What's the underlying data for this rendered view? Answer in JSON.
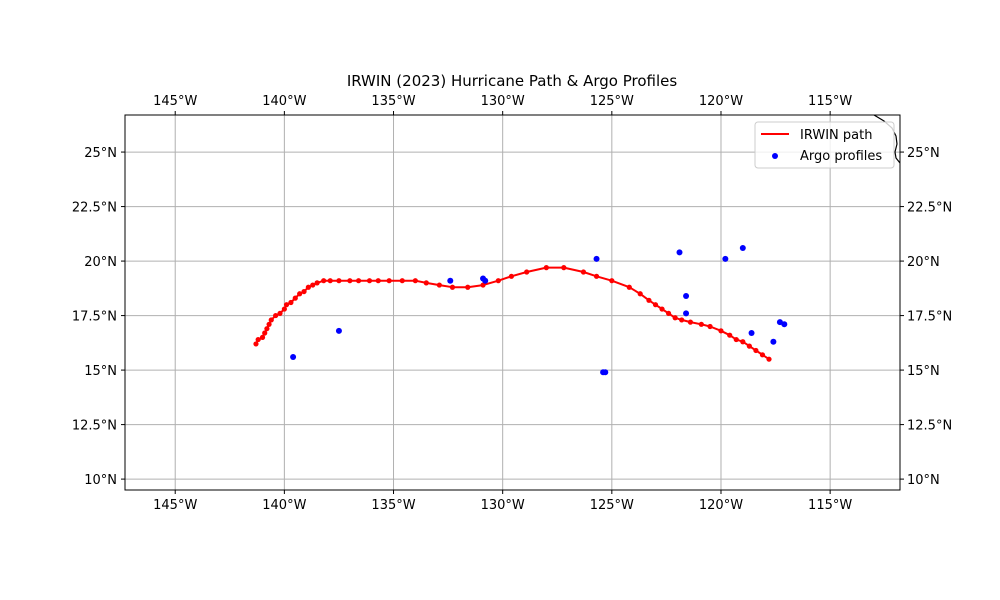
{
  "chart_data": {
    "type": "map",
    "title": "IRWIN (2023) Hurricane Path & Argo Profiles",
    "projection": "PlateCarree",
    "xlim": [
      -147.3,
      -111.8
    ],
    "ylim": [
      9.5,
      26.7
    ],
    "x_ticks": [
      -145,
      -140,
      -135,
      -130,
      -125,
      -120,
      -115
    ],
    "x_tick_labels": [
      "145°W",
      "140°W",
      "135°W",
      "130°W",
      "125°W",
      "120°W",
      "115°W"
    ],
    "y_ticks": [
      10,
      12.5,
      15,
      17.5,
      20,
      22.5,
      25
    ],
    "y_tick_labels": [
      "10°N",
      "12.5°N",
      "15°N",
      "17.5°N",
      "20°N",
      "22.5°N",
      "25°N"
    ],
    "grid": true,
    "legend": {
      "position": "top-right",
      "entries": [
        {
          "label": "IRWIN path",
          "marker": "line"
        },
        {
          "label": "Argo profiles",
          "marker": "dot"
        }
      ]
    },
    "colors": {
      "path": "#ff0000",
      "argo": "#0000ff",
      "grid": "#b0b0b0",
      "coast": "#000000"
    },
    "series": [
      {
        "name": "IRWIN path",
        "kind": "line",
        "points": [
          [
            -117.8,
            15.5
          ],
          [
            -118.1,
            15.7
          ],
          [
            -118.4,
            15.9
          ],
          [
            -118.7,
            16.1
          ],
          [
            -119.0,
            16.3
          ],
          [
            -119.3,
            16.4
          ],
          [
            -119.6,
            16.6
          ],
          [
            -120.0,
            16.8
          ],
          [
            -120.5,
            17.0
          ],
          [
            -120.9,
            17.1
          ],
          [
            -121.4,
            17.2
          ],
          [
            -121.8,
            17.3
          ],
          [
            -122.1,
            17.4
          ],
          [
            -122.4,
            17.6
          ],
          [
            -122.7,
            17.8
          ],
          [
            -123.0,
            18.0
          ],
          [
            -123.3,
            18.2
          ],
          [
            -123.7,
            18.5
          ],
          [
            -124.2,
            18.8
          ],
          [
            -125.0,
            19.1
          ],
          [
            -125.7,
            19.3
          ],
          [
            -126.3,
            19.5
          ],
          [
            -127.2,
            19.7
          ],
          [
            -128.0,
            19.7
          ],
          [
            -128.9,
            19.5
          ],
          [
            -129.6,
            19.3
          ],
          [
            -130.2,
            19.1
          ],
          [
            -130.9,
            18.9
          ],
          [
            -131.6,
            18.8
          ],
          [
            -132.3,
            18.8
          ],
          [
            -132.9,
            18.9
          ],
          [
            -133.5,
            19.0
          ],
          [
            -134.0,
            19.1
          ],
          [
            -134.6,
            19.1
          ],
          [
            -135.2,
            19.1
          ],
          [
            -135.7,
            19.1
          ],
          [
            -136.1,
            19.1
          ],
          [
            -136.6,
            19.1
          ],
          [
            -137.0,
            19.1
          ],
          [
            -137.5,
            19.1
          ],
          [
            -137.9,
            19.1
          ],
          [
            -138.2,
            19.1
          ],
          [
            -138.5,
            19.0
          ],
          [
            -138.7,
            18.9
          ],
          [
            -138.9,
            18.8
          ],
          [
            -139.1,
            18.6
          ],
          [
            -139.3,
            18.5
          ],
          [
            -139.5,
            18.3
          ],
          [
            -139.7,
            18.1
          ],
          [
            -139.9,
            18.0
          ],
          [
            -140.0,
            17.8
          ],
          [
            -140.2,
            17.6
          ],
          [
            -140.4,
            17.5
          ],
          [
            -140.6,
            17.3
          ],
          [
            -140.7,
            17.1
          ],
          [
            -140.8,
            16.9
          ],
          [
            -140.9,
            16.7
          ],
          [
            -141.0,
            16.5
          ],
          [
            -141.2,
            16.4
          ],
          [
            -141.3,
            16.2
          ]
        ]
      },
      {
        "name": "Argo profiles",
        "kind": "scatter",
        "points": [
          [
            -139.6,
            15.6
          ],
          [
            -137.5,
            16.8
          ],
          [
            -132.4,
            19.1
          ],
          [
            -130.9,
            19.2
          ],
          [
            -130.8,
            19.1
          ],
          [
            -125.7,
            20.1
          ],
          [
            -125.4,
            14.9
          ],
          [
            -125.3,
            14.9
          ],
          [
            -121.9,
            20.4
          ],
          [
            -121.6,
            18.4
          ],
          [
            -121.6,
            17.6
          ],
          [
            -119.8,
            20.1
          ],
          [
            -119.0,
            20.6
          ],
          [
            -118.6,
            16.7
          ],
          [
            -117.6,
            16.3
          ],
          [
            -117.3,
            17.2
          ],
          [
            -117.1,
            17.1
          ]
        ]
      }
    ]
  }
}
